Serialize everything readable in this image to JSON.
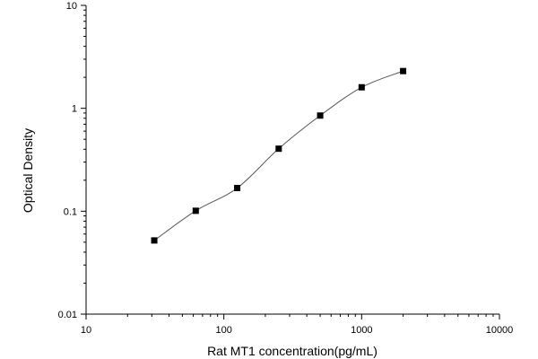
{
  "chart_data": {
    "type": "scatter",
    "title": "",
    "xlabel": "Rat MT1 concentration(pg/mL)",
    "ylabel": "Optical Density",
    "xscale": "log",
    "yscale": "log",
    "xlim": [
      10,
      10000
    ],
    "ylim": [
      0.01,
      10
    ],
    "grid": false,
    "legend": "none",
    "x_ticks": [
      {
        "value": 10,
        "label": "10"
      },
      {
        "value": 100,
        "label": "100"
      },
      {
        "value": 1000,
        "label": "1000"
      },
      {
        "value": 10000,
        "label": "10000"
      }
    ],
    "y_ticks": [
      {
        "value": 0.01,
        "label": "0.01"
      },
      {
        "value": 0.1,
        "label": "0.1"
      },
      {
        "value": 1,
        "label": "1"
      },
      {
        "value": 10,
        "label": "10"
      }
    ],
    "series": [
      {
        "points": [
          {
            "x": 31.25,
            "y": 0.052
          },
          {
            "x": 62.5,
            "y": 0.101
          },
          {
            "x": 125,
            "y": 0.168
          },
          {
            "x": 250,
            "y": 0.405
          },
          {
            "x": 500,
            "y": 0.85
          },
          {
            "x": 1000,
            "y": 1.6
          },
          {
            "x": 2000,
            "y": 2.3
          }
        ],
        "fit_curve": {
          "type": "four-parameter-logistic",
          "x_range": [
            31.25,
            2000
          ]
        }
      }
    ],
    "colors": {
      "marker": "#000000",
      "curve": "#555555",
      "axis": "#000000"
    }
  }
}
